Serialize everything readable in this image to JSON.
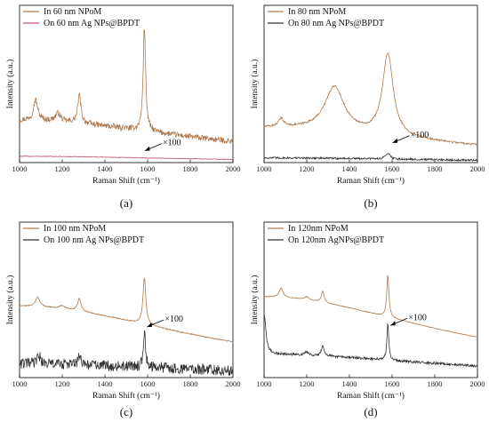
{
  "chart_data": [
    {
      "type": "line",
      "panel_label": "(a)",
      "xlabel": "Raman Shift (cm⁻¹)",
      "ylabel": "Intensity (a.u.)",
      "xlim": [
        1000,
        2000
      ],
      "ylim": [
        0,
        1
      ],
      "x_ticks": [
        "1000",
        "1200",
        "1400",
        "1600",
        "1800",
        "2000"
      ],
      "annotation": {
        "text": "×100",
        "x": 1575,
        "y": 0.07
      },
      "legend_position": "top-left",
      "series": [
        {
          "name": "In 60 nm NPoM",
          "color": "#b07a4e",
          "noise": 0.018,
          "peaks": [
            {
              "center": 1000,
              "height": 0.27,
              "width": 1000
            },
            {
              "center": 1075,
              "height": 0.13,
              "width": 12
            },
            {
              "center": 1180,
              "height": 0.05,
              "width": 15
            },
            {
              "center": 1280,
              "height": 0.18,
              "width": 9
            },
            {
              "center": 1585,
              "height": 0.66,
              "width": 7
            }
          ]
        },
        {
          "name": "On 60 nm Ag NPs@BPDT",
          "color": "#c0566b",
          "noise": 0.002,
          "peaks": [
            {
              "center": 1000,
              "height": 0.04,
              "width": 1000
            }
          ]
        }
      ]
    },
    {
      "type": "line",
      "panel_label": "(b)",
      "xlabel": "Raman Shift (cm⁻¹)",
      "ylabel": "Intensity (a.u.)",
      "xlim": [
        1000,
        2000
      ],
      "ylim": [
        0,
        1
      ],
      "x_ticks": [
        "1000",
        "1200",
        "1400",
        "1600",
        "1800",
        "2000"
      ],
      "annotation": {
        "text": "×100",
        "x": 1590,
        "y": 0.12
      },
      "legend_position": "top-left",
      "series": [
        {
          "name": "In 80 nm NPoM",
          "color": "#b07a4e",
          "noise": 0.006,
          "peaks": [
            {
              "center": 1000,
              "height": 0.22,
              "width": 1000
            },
            {
              "center": 1080,
              "height": 0.05,
              "width": 15
            },
            {
              "center": 1330,
              "height": 0.28,
              "width": 55
            },
            {
              "center": 1580,
              "height": 0.52,
              "width": 30
            }
          ]
        },
        {
          "name": "On 80 nm Ag NPs@BPDT",
          "color": "#333333",
          "noise": 0.006,
          "peaks": [
            {
              "center": 1000,
              "height": 0.03,
              "width": 1000
            },
            {
              "center": 1580,
              "height": 0.04,
              "width": 12
            }
          ]
        }
      ]
    },
    {
      "type": "line",
      "panel_label": "(c)",
      "xlabel": "Raman Shift (cm⁻¹)",
      "ylabel": "Intensity (a.u.)",
      "xlim": [
        1000,
        2000
      ],
      "ylim": [
        0,
        1
      ],
      "x_ticks": [
        "1000",
        "1200",
        "1400",
        "1600",
        "1800",
        "2000"
      ],
      "annotation": {
        "text": "×100",
        "x": 1585,
        "y": 0.32
      },
      "legend_position": "top-left",
      "series": [
        {
          "name": "In 100 nm NPoM",
          "color": "#b07a4e",
          "noise": 0.003,
          "peaks": [
            {
              "center": 1000,
              "height": 0.46,
              "width": 1000
            },
            {
              "center": 1085,
              "height": 0.06,
              "width": 12
            },
            {
              "center": 1200,
              "height": 0.02,
              "width": 15
            },
            {
              "center": 1280,
              "height": 0.08,
              "width": 10
            },
            {
              "center": 1585,
              "height": 0.3,
              "width": 8
            }
          ]
        },
        {
          "name": "On 100 nm Ag NPs@BPDT",
          "color": "#333333",
          "noise": 0.035,
          "peaks": [
            {
              "center": 1000,
              "height": 0.09,
              "width": 1000
            },
            {
              "center": 1090,
              "height": 0.06,
              "width": 8
            },
            {
              "center": 1280,
              "height": 0.05,
              "width": 8
            },
            {
              "center": 1585,
              "height": 0.24,
              "width": 6
            }
          ]
        }
      ]
    },
    {
      "type": "line",
      "panel_label": "(d)",
      "xlabel": "Raman Shift (cm⁻¹)",
      "ylabel": "Intensity (a.u.)",
      "xlim": [
        1000,
        2000
      ],
      "ylim": [
        0,
        1
      ],
      "x_ticks": [
        "1000",
        "1200",
        "1400",
        "1600",
        "1800",
        "2000"
      ],
      "annotation": {
        "text": "×100",
        "x": 1580,
        "y": 0.33
      },
      "legend_position": "top-left",
      "series": [
        {
          "name": "In 120nm NPoM",
          "color": "#b07a4e",
          "noise": 0.002,
          "peaks": [
            {
              "center": 1000,
              "height": 0.52,
              "width": 1000
            },
            {
              "center": 1080,
              "height": 0.06,
              "width": 10
            },
            {
              "center": 1200,
              "height": 0.02,
              "width": 12
            },
            {
              "center": 1275,
              "height": 0.07,
              "width": 8
            },
            {
              "center": 1580,
              "height": 0.27,
              "width": 6
            }
          ]
        },
        {
          "name": "On 120nm AgNPs@BPDT",
          "color": "#333333",
          "noise": 0.008,
          "peaks": [
            {
              "center": 1000,
              "height": 0.15,
              "width": 1000
            },
            {
              "center": 1000,
              "height": 0.26,
              "width": 10
            },
            {
              "center": 1200,
              "height": 0.02,
              "width": 12
            },
            {
              "center": 1275,
              "height": 0.06,
              "width": 8
            },
            {
              "center": 1580,
              "height": 0.24,
              "width": 5
            }
          ]
        }
      ]
    }
  ]
}
